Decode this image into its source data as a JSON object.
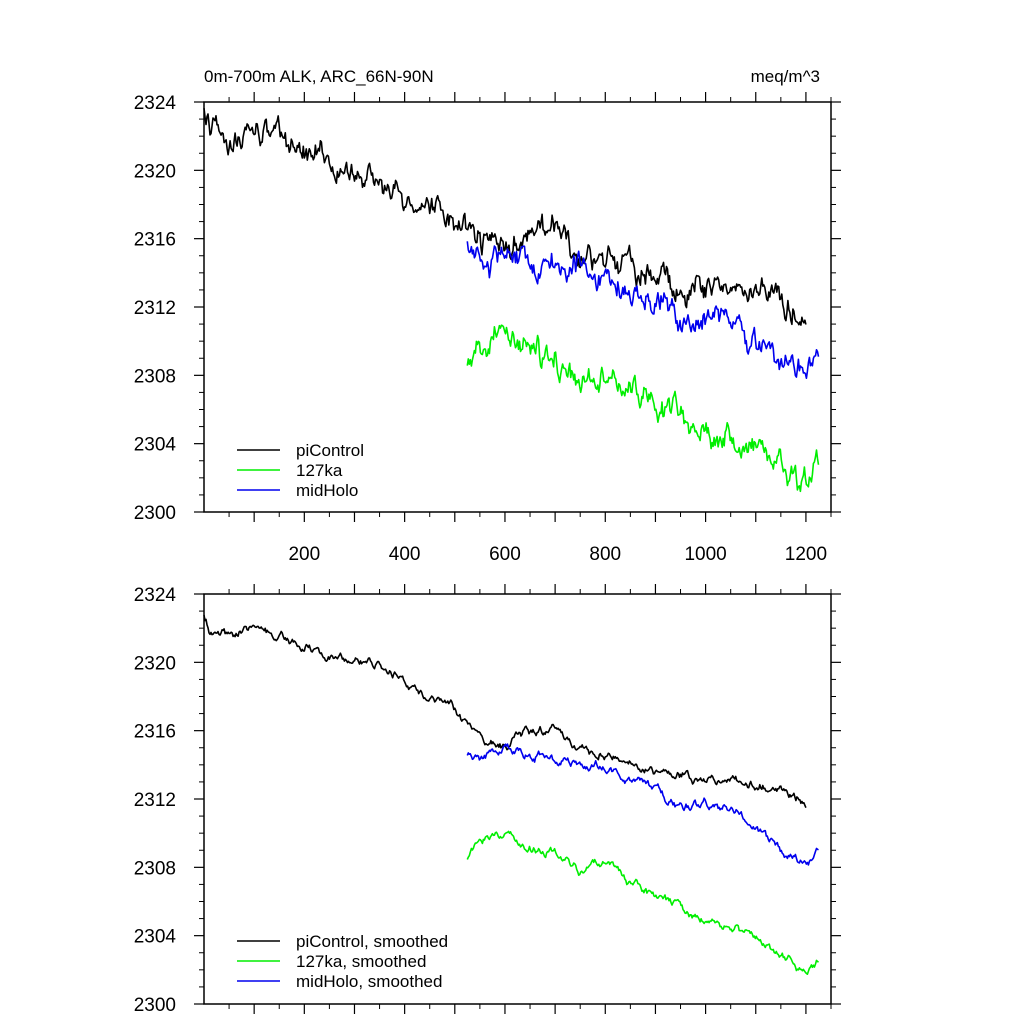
{
  "chart_data": [
    {
      "type": "line",
      "title": "0m-700m ALK, ARC_66N-90N",
      "units": "meq/m^3",
      "xlabel": "",
      "ylabel": "",
      "xlim": [
        0,
        1250
      ],
      "ylim": [
        2300,
        2324
      ],
      "x_ticks": [
        200,
        400,
        600,
        800,
        1000,
        1200
      ],
      "y_ticks": [
        2300,
        2304,
        2308,
        2312,
        2316,
        2320,
        2324
      ],
      "grid": false,
      "legend_position": "bottom-left",
      "smoothed": false,
      "series": [
        {
          "name": "piControl",
          "color": "#000000",
          "x": [
            0,
            10,
            50,
            100,
            150,
            200,
            250,
            300,
            350,
            400,
            450,
            500,
            550,
            600,
            650,
            700,
            750,
            800,
            850,
            900,
            950,
            1000,
            1050,
            1100,
            1150,
            1200
          ],
          "y": [
            2323.8,
            2322.3,
            2321.9,
            2322.2,
            2322.0,
            2320.8,
            2320.5,
            2320.0,
            2319.5,
            2318.6,
            2317.8,
            2317.4,
            2315.8,
            2315.4,
            2316.2,
            2316.3,
            2314.7,
            2314.6,
            2314.3,
            2313.6,
            2313.4,
            2313.0,
            2313.2,
            2312.9,
            2312.6,
            2311.6
          ]
        },
        {
          "name": "127ka",
          "color": "#00ee00",
          "x": [
            525,
            550,
            600,
            650,
            700,
            750,
            800,
            850,
            900,
            950,
            1000,
            1050,
            1100,
            1150,
            1200,
            1225
          ],
          "y": [
            2308.1,
            2309.6,
            2309.9,
            2309.4,
            2308.9,
            2307.4,
            2308.6,
            2307.0,
            2306.1,
            2305.8,
            2304.5,
            2304.3,
            2303.8,
            2302.8,
            2302.0,
            2302.7
          ]
        },
        {
          "name": "midHolo",
          "color": "#0000ee",
          "x": [
            525,
            550,
            600,
            650,
            700,
            750,
            800,
            850,
            900,
            950,
            1000,
            1050,
            1100,
            1150,
            1200,
            1225
          ],
          "y": [
            2315.5,
            2314.3,
            2315.2,
            2314.9,
            2314.5,
            2313.9,
            2313.8,
            2313.1,
            2312.6,
            2311.4,
            2311.6,
            2311.2,
            2310.2,
            2309.0,
            2308.0,
            2308.8
          ]
        }
      ]
    },
    {
      "type": "line",
      "title": "",
      "xlabel": "",
      "ylabel": "",
      "xlim": [
        0,
        1250
      ],
      "ylim": [
        2300,
        2324
      ],
      "y_ticks": [
        2300,
        2304,
        2308,
        2312,
        2316,
        2320,
        2324
      ],
      "grid": false,
      "legend_position": "bottom-left",
      "smoothed": true,
      "series": [
        {
          "name": "piControl, smoothed",
          "color": "#000000",
          "x": [
            0,
            10,
            50,
            100,
            150,
            200,
            250,
            300,
            350,
            400,
            450,
            500,
            550,
            600,
            650,
            700,
            750,
            800,
            850,
            900,
            950,
            1000,
            1050,
            1100,
            1150,
            1200
          ],
          "y": [
            2322.9,
            2322.0,
            2321.6,
            2322.0,
            2321.6,
            2320.9,
            2320.4,
            2320.1,
            2319.8,
            2318.9,
            2317.7,
            2317.2,
            2315.6,
            2315.1,
            2316.0,
            2316.2,
            2314.8,
            2314.6,
            2314.3,
            2313.7,
            2313.4,
            2313.1,
            2313.2,
            2312.9,
            2312.5,
            2311.7
          ]
        },
        {
          "name": "127ka, smoothed",
          "color": "#00ee00",
          "x": [
            525,
            550,
            600,
            650,
            700,
            750,
            800,
            850,
            900,
            950,
            1000,
            1050,
            1100,
            1150,
            1200,
            1225
          ],
          "y": [
            2308.6,
            2309.4,
            2309.8,
            2309.3,
            2309.0,
            2307.6,
            2308.5,
            2307.1,
            2306.2,
            2305.7,
            2304.7,
            2304.4,
            2303.8,
            2302.9,
            2302.0,
            2302.4
          ]
        },
        {
          "name": "midHolo, smoothed",
          "color": "#0000ee",
          "x": [
            525,
            550,
            600,
            650,
            700,
            750,
            800,
            850,
            900,
            950,
            1000,
            1050,
            1100,
            1150,
            1200,
            1225
          ],
          "y": [
            2314.7,
            2314.3,
            2315.0,
            2314.8,
            2314.4,
            2314.0,
            2313.8,
            2313.2,
            2312.6,
            2311.5,
            2311.7,
            2311.3,
            2310.3,
            2309.1,
            2308.0,
            2308.7
          ]
        }
      ]
    }
  ]
}
